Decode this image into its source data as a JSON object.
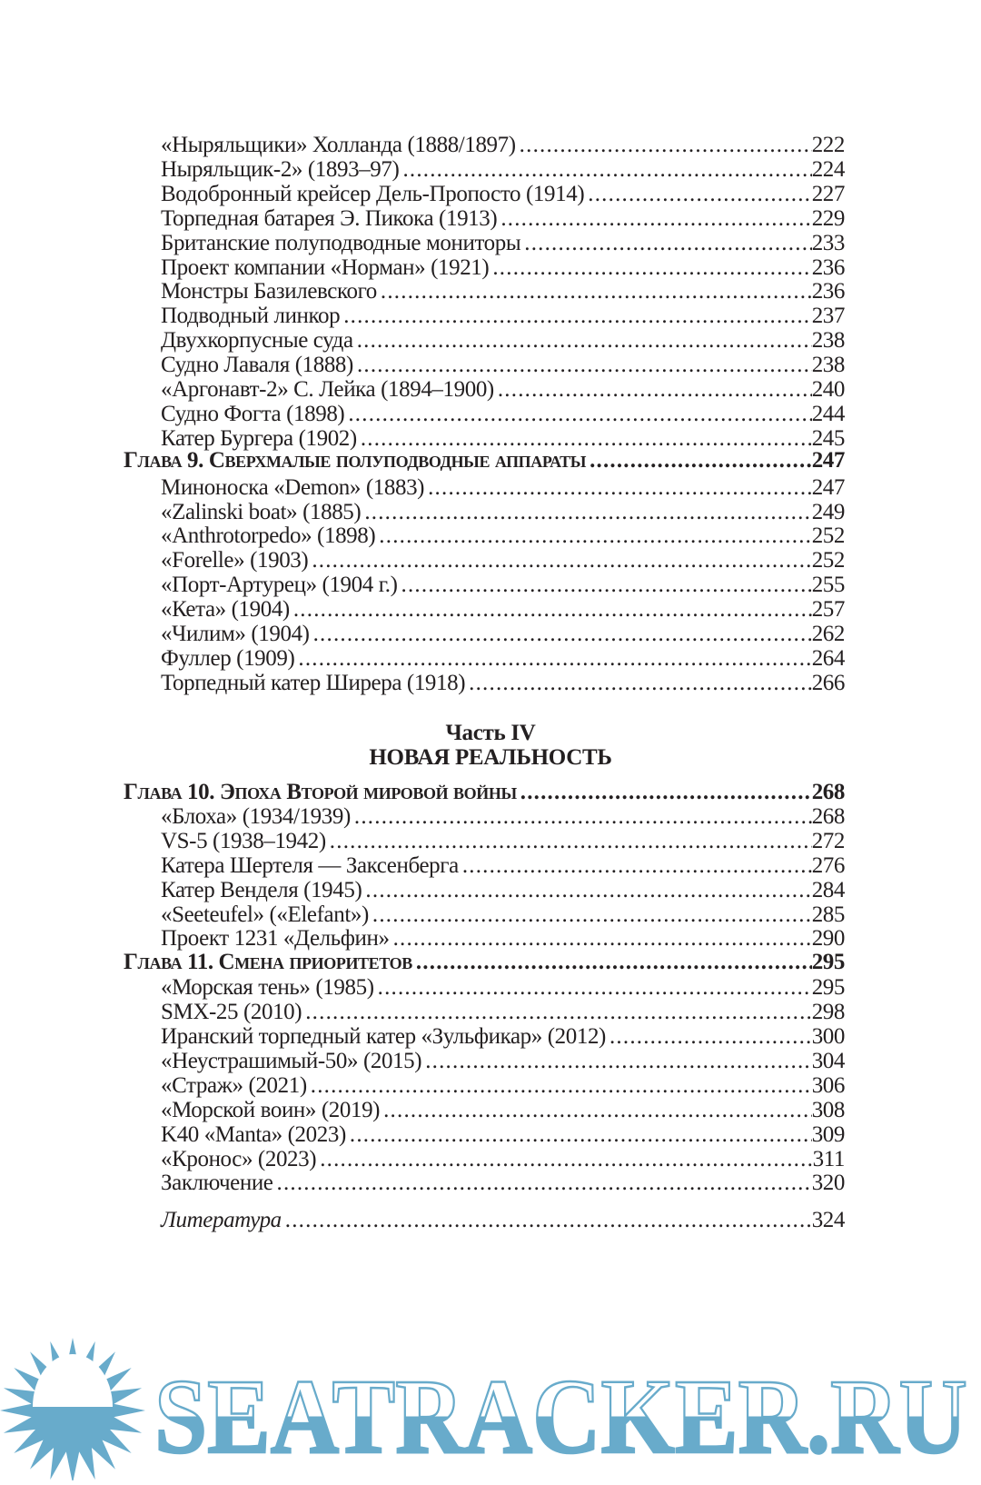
{
  "section_a": [
    {
      "title": "«Ныряльщики» Холланда (1888/1897)",
      "page": "222"
    },
    {
      "title": "Ныряльщик-2» (1893–97)",
      "page": "224"
    },
    {
      "title": "Водобронный крейсер Дель-Пропосто (1914)",
      "page": "227"
    },
    {
      "title": "Торпедная батарея Э. Пикока (1913)",
      "page": "229"
    },
    {
      "title": "Британские полуподводные мониторы",
      "page": "233"
    },
    {
      "title": "Проект компании «Норман» (1921)",
      "page": "236"
    },
    {
      "title": "Монстры Базилевского",
      "page": "236"
    },
    {
      "title": "Подводный линкор",
      "page": "237"
    },
    {
      "title": "Двухкорпусные суда",
      "page": "238"
    },
    {
      "title": "Судно Лаваля (1888)",
      "page": "238"
    },
    {
      "title": "«Аргонавт-2» С. Лейка (1894–1900)",
      "page": "240"
    },
    {
      "title": "Судно Фогта (1898)",
      "page": "244"
    },
    {
      "title": "Катер Бургера (1902)",
      "page": "245"
    }
  ],
  "chapter9": {
    "title": "Глава 9. Сверхмалые полуподводные аппараты",
    "page": "247"
  },
  "section_b": [
    {
      "title": "Миноноска «Demon» (1883)",
      "page": "247"
    },
    {
      "title": "«Zalinski boat» (1885)",
      "page": "249"
    },
    {
      "title": "«Anthrotorpedo» (1898)",
      "page": "252"
    },
    {
      "title": "«Forelle» (1903)",
      "page": "252"
    },
    {
      "title": "«Порт-Артурец» (1904 г.)",
      "page": "255"
    },
    {
      "title": "«Кета» (1904)",
      "page": "257"
    },
    {
      "title": "«Чилим» (1904)",
      "page": "262"
    },
    {
      "title": "Фуллер (1909)",
      "page": "264"
    },
    {
      "title": "Торпедный катер Ширера (1918)",
      "page": "266"
    }
  ],
  "part": {
    "label": "Часть IV",
    "title": "НОВАЯ РЕАЛЬНОСТЬ"
  },
  "chapter10": {
    "title": "Глава 10. Эпоха Второй мировой войны",
    "page": "268"
  },
  "section_c": [
    {
      "title": "«Блоха» (1934/1939)",
      "page": "268"
    },
    {
      "title": "VS-5 (1938–1942)",
      "page": "272"
    },
    {
      "title": "Катера Шертеля — Заксенберга",
      "page": "276"
    },
    {
      "title": "Катер Венделя (1945)",
      "page": "284"
    },
    {
      "title": "«Seeteufel» («Elefant»)",
      "page": "285"
    },
    {
      "title": "Проект 1231 «Дельфин»",
      "page": "290"
    }
  ],
  "chapter11": {
    "title": "Глава 11. Смена приоритетов",
    "page": "295"
  },
  "section_d": [
    {
      "title": "«Морская тень» (1985)",
      "page": "295"
    },
    {
      "title": "SMX-25 (2010)",
      "page": "298"
    },
    {
      "title": "Иранский торпедный катер «Зульфикар» (2012)",
      "page": "300"
    },
    {
      "title": "«Неустрашимый-50» (2015)",
      "page": "304"
    },
    {
      "title": " «Страж» (2021)",
      "page": "306"
    },
    {
      "title": "«Морской воин» (2019)",
      "page": "308"
    },
    {
      "title": "K40 «Manta» (2023)",
      "page": "309"
    },
    {
      "title": "«Кронос» (2023)",
      "page": "311"
    },
    {
      "title": "Заключение",
      "page": "320"
    }
  ],
  "literature": {
    "title": "Литература",
    "page": "324"
  },
  "watermark": {
    "text": "SEATRACKER.RU",
    "color": "#68abcb"
  }
}
